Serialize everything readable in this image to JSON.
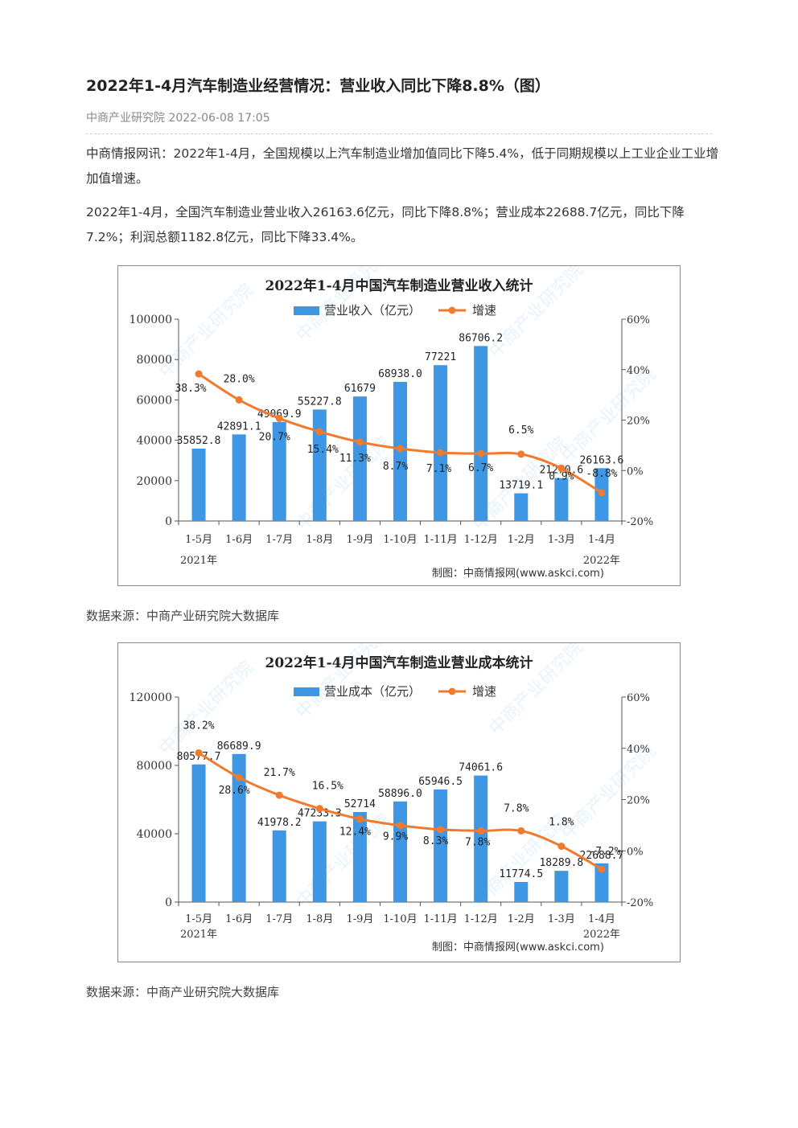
{
  "article": {
    "title": "2022年1-4月汽车制造业经营情况：营业收入同比下降8.8%（图）",
    "source_line": "中商产业研究院 2022-06-08 17:05",
    "paragraphs": [
      "中商情报网讯：2022年1-4月，全国规模以上汽车制造业增加值同比下降5.4%，低于同期规模以上工业企业工业增加值增速。",
      "2022年1-4月，全国汽车制造业营业收入26163.6亿元，同比下降8.8%；营业成本22688.7亿元，同比下降7.2%；利润总额1182.8亿元，同比下降33.4%。"
    ],
    "data_source_1": "数据来源：中商产业研究院大数据库",
    "data_source_2": "数据来源：中商产业研究院大数据库"
  },
  "colors": {
    "bar": "#3d97e4",
    "line": "#f07a2d",
    "axis": "#555555"
  },
  "chart_data": [
    {
      "type": "bar",
      "title": "2022年1-4月中国汽车制造业营业收入统计",
      "categories": [
        "1-5月",
        "1-6月",
        "1-7月",
        "1-8月",
        "1-9月",
        "1-10月",
        "1-11月",
        "1-12月",
        "1-2月",
        "1-3月",
        "1-4月"
      ],
      "year_labels": [
        "2021年",
        "2022年"
      ],
      "series": [
        {
          "name": "营业收入（亿元）",
          "kind": "bar",
          "axis": "left",
          "values": [
            35852.8,
            42891.1,
            49069.9,
            55227.8,
            61679,
            68938.0,
            77221,
            86706.2,
            13719.1,
            21270.6,
            26163.6
          ],
          "labels": [
            "35852.8",
            "42891.1",
            "49069.9",
            "55227.8",
            "61679",
            "68938.0",
            "77221",
            "86706.2",
            "13719.1",
            "21270.6",
            "26163.6"
          ]
        },
        {
          "name": "增速",
          "kind": "line",
          "axis": "right",
          "values": [
            38.3,
            28.0,
            20.7,
            15.4,
            11.3,
            8.7,
            7.1,
            6.7,
            6.5,
            0.9,
            -8.8
          ],
          "labels": [
            "38.3%",
            "28.0%",
            "20.7%",
            "15.4%",
            "11.3%",
            "8.7%",
            "7.1%",
            "6.7%",
            "6.5%",
            "0.9%",
            "-8.8%"
          ]
        }
      ],
      "ylim": [
        0,
        100000
      ],
      "yticks": [
        0,
        20000,
        40000,
        60000,
        80000,
        100000
      ],
      "y2lim": [
        -20,
        60
      ],
      "y2ticks": [
        "-20%",
        "0%",
        "20%",
        "40%",
        "60%"
      ],
      "legend": "top-center",
      "credit": "制图：中商情报网(www.askci.com)",
      "watermark": "中商产业研究院"
    },
    {
      "type": "bar",
      "title": "2022年1-4月中国汽车制造业营业成本统计",
      "categories": [
        "1-5月",
        "1-6月",
        "1-7月",
        "1-8月",
        "1-9月",
        "1-10月",
        "1-11月",
        "1-12月",
        "1-2月",
        "1-3月",
        "1-4月"
      ],
      "year_labels": [
        "2021年",
        "2022年"
      ],
      "series": [
        {
          "name": "营业成本（亿元）",
          "kind": "bar",
          "axis": "left",
          "values": [
            80577.7,
            86689.9,
            41978.2,
            47233.3,
            52714,
            58896.0,
            65946.5,
            74061.6,
            11774.5,
            18289.8,
            22688.7
          ],
          "labels": [
            "80577.7",
            "86689.9",
            "41978.2",
            "47233.3",
            "52714",
            "58896.0",
            "65946.5",
            "74061.6",
            "11774.5",
            "18289.8",
            "22688.7"
          ]
        },
        {
          "name": "增速",
          "kind": "line",
          "axis": "right",
          "values": [
            38.2,
            28.6,
            21.7,
            16.5,
            12.4,
            9.9,
            8.3,
            7.8,
            7.8,
            1.8,
            -7.2
          ],
          "labels": [
            "38.2%",
            "28.6%",
            "21.7%",
            "16.5%",
            "12.4%",
            "9.9%",
            "8.3%",
            "7.8%",
            "7.8%",
            "1.8%",
            "-7.2%"
          ]
        }
      ],
      "ylim": [
        0,
        120000
      ],
      "yticks": [
        0,
        40000,
        80000,
        120000
      ],
      "y2lim": [
        -20,
        60
      ],
      "y2ticks": [
        "-20%",
        "0%",
        "20%",
        "40%",
        "60%"
      ],
      "legend": "top-center",
      "credit": "制图：中商情报网(www.askci.com)",
      "watermark": "中商产业研究院"
    }
  ]
}
